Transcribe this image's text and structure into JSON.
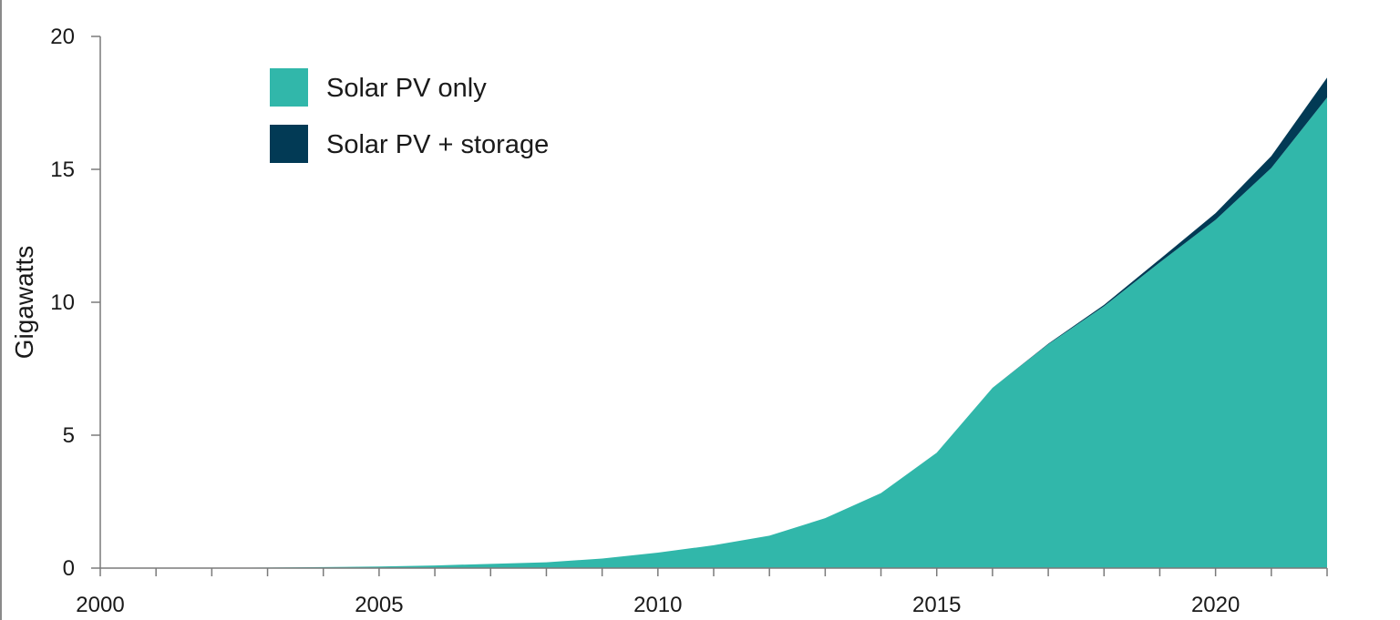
{
  "chart_data": {
    "type": "area",
    "title": "",
    "xlabel": "",
    "ylabel": "Gigawatts",
    "x": [
      2000,
      2001,
      2002,
      2003,
      2004,
      2005,
      2006,
      2007,
      2008,
      2009,
      2010,
      2011,
      2012,
      2013,
      2014,
      2015,
      2016,
      2017,
      2018,
      2019,
      2020,
      2021,
      2022
    ],
    "xlim": [
      2000,
      2022
    ],
    "ylim": [
      0,
      20
    ],
    "x_ticks": [
      2000,
      2005,
      2010,
      2015,
      2020
    ],
    "x_tick_labels": [
      "2000",
      "2005",
      "2010",
      "2015",
      "2020"
    ],
    "y_ticks": [
      0,
      5,
      10,
      15,
      20
    ],
    "y_tick_labels": [
      "0",
      "5",
      "10",
      "15",
      "20"
    ],
    "stacked": true,
    "legend_position": "top-left",
    "series": [
      {
        "name": "Solar PV only",
        "color": "#31b7aa",
        "values": [
          0.0,
          0.0,
          0.01,
          0.02,
          0.04,
          0.06,
          0.1,
          0.16,
          0.22,
          0.36,
          0.58,
          0.86,
          1.22,
          1.88,
          2.82,
          4.34,
          6.78,
          8.42,
          9.85,
          11.5,
          13.1,
          15.05,
          17.7
        ]
      },
      {
        "name": "Solar PV + storage",
        "color": "#023a55",
        "values": [
          0.0,
          0.0,
          0.0,
          0.0,
          0.0,
          0.0,
          0.0,
          0.0,
          0.0,
          0.0,
          0.0,
          0.0,
          0.0,
          0.0,
          0.0,
          0.0,
          0.0,
          0.02,
          0.05,
          0.12,
          0.25,
          0.45,
          0.75
        ]
      }
    ]
  }
}
